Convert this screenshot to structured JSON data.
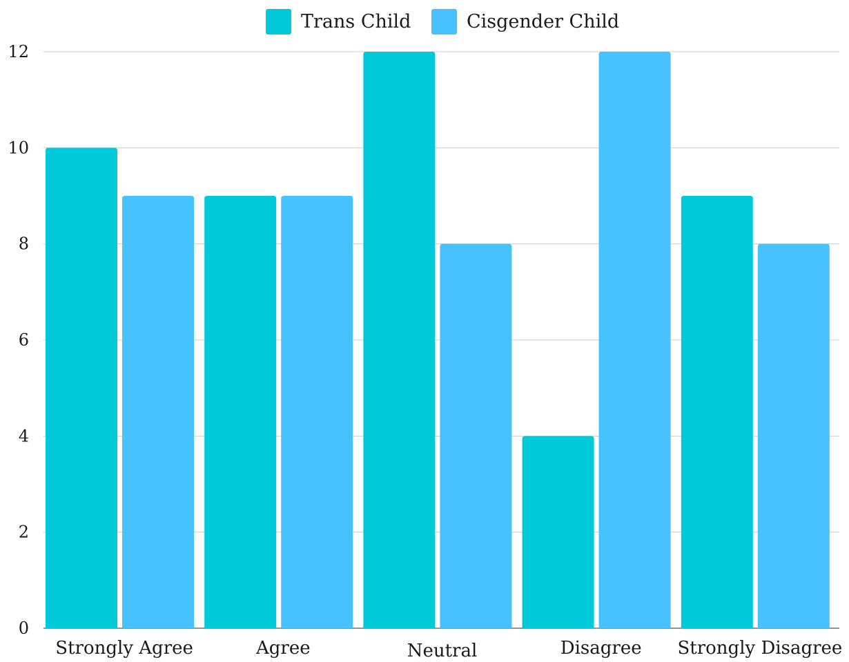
{
  "chart_data": {
    "type": "bar",
    "categories": [
      "Strongly Agree",
      "Agree",
      "Neutral",
      "Disagree",
      "Strongly Disagree"
    ],
    "series": [
      {
        "name": "Trans Child",
        "values": [
          10,
          9,
          12,
          4,
          9
        ],
        "color": "#00C9DA"
      },
      {
        "name": "Cisgender Child",
        "values": [
          9,
          9,
          8,
          12,
          8
        ],
        "color": "#47C2FF"
      }
    ],
    "title": "",
    "xlabel": "",
    "ylabel": "",
    "ylim": [
      0,
      12
    ],
    "yticks": [
      0,
      2,
      4,
      6,
      8,
      10,
      12
    ],
    "grid": true,
    "legend_position": "top-center"
  }
}
